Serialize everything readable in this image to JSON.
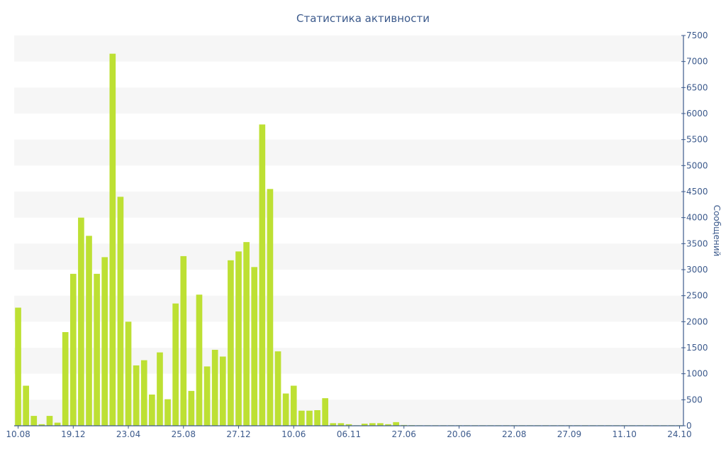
{
  "chart_data": {
    "type": "bar",
    "title": "Статистика активности",
    "xlabel": "",
    "ylabel": "Сообщений",
    "ylim": [
      0,
      7500
    ],
    "y_ticks": [
      0,
      500,
      1000,
      1500,
      2000,
      2500,
      3000,
      3500,
      4000,
      4500,
      5000,
      5500,
      6000,
      6500,
      7000,
      7500
    ],
    "y_axis_side": "right",
    "x_tick_labels": [
      "10.08",
      "19.12",
      "23.04",
      "25.08",
      "27.12",
      "10.06",
      "06.11",
      "27.06",
      "20.06",
      "22.08",
      "27.09",
      "11.10",
      "24.10"
    ],
    "x_tick_positions": [
      0,
      7,
      14,
      21,
      28,
      35,
      42,
      49,
      56,
      63,
      70,
      77,
      84
    ],
    "values": [
      2270,
      770,
      190,
      30,
      190,
      60,
      1800,
      2920,
      4000,
      3650,
      2920,
      3240,
      7150,
      4400,
      2000,
      1160,
      1260,
      600,
      1410,
      510,
      2350,
      3260,
      670,
      2520,
      1140,
      1460,
      1330,
      3180,
      3350,
      3530,
      3050,
      5790,
      4550,
      1430,
      620,
      770,
      290,
      290,
      300,
      530,
      50,
      50,
      30,
      10,
      40,
      50,
      50,
      30,
      70,
      15,
      12,
      10,
      10,
      10,
      10,
      10,
      10,
      10,
      10,
      10,
      10,
      10,
      10,
      10,
      10,
      10,
      10,
      10,
      10,
      10,
      10,
      10,
      10,
      10,
      10,
      10,
      10,
      10,
      10,
      10,
      10,
      10,
      10,
      10,
      10
    ],
    "bar_color": "#bde033",
    "text_color": "#3c5a8c",
    "grid": true
  }
}
